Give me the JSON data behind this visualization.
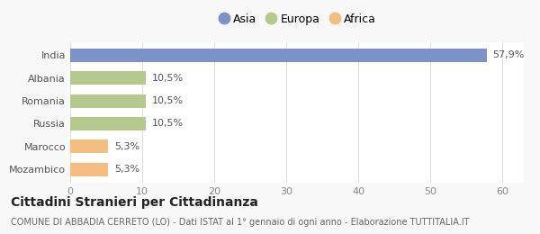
{
  "categories": [
    "India",
    "Albania",
    "Romania",
    "Russia",
    "Marocco",
    "Mozambico"
  ],
  "values": [
    57.9,
    10.5,
    10.5,
    10.5,
    5.3,
    5.3
  ],
  "labels": [
    "57,9%",
    "10,5%",
    "10,5%",
    "10,5%",
    "5,3%",
    "5,3%"
  ],
  "colors": [
    "#7b93c8",
    "#b5c98e",
    "#b5c98e",
    "#b5c98e",
    "#f4be82",
    "#f4be82"
  ],
  "legend_items": [
    {
      "label": "Asia",
      "color": "#7b93c8"
    },
    {
      "label": "Europa",
      "color": "#b5c98e"
    },
    {
      "label": "Africa",
      "color": "#f4be82"
    }
  ],
  "xlim": [
    0,
    63
  ],
  "xticks": [
    0,
    10,
    20,
    30,
    40,
    50,
    60
  ],
  "title": "Cittadini Stranieri per Cittadinanza",
  "subtitle": "COMUNE DI ABBADIA CERRETO (LO) - Dati ISTAT al 1° gennaio di ogni anno - Elaborazione TUTTITALIA.IT",
  "background_color": "#f8f8f8",
  "plot_background": "#ffffff",
  "bar_height": 0.6,
  "title_fontsize": 10,
  "subtitle_fontsize": 7,
  "label_fontsize": 8,
  "tick_fontsize": 8,
  "legend_fontsize": 9
}
